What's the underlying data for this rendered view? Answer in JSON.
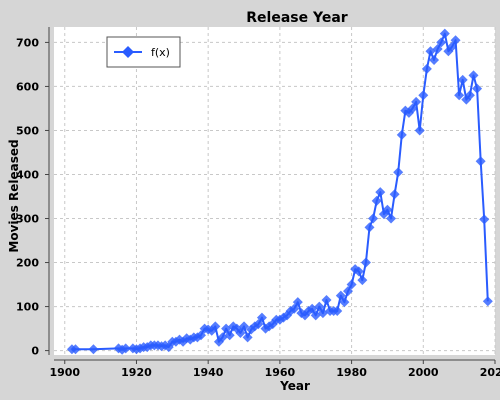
{
  "chart_data": {
    "type": "line",
    "title": "Release Year",
    "xlabel": "Year",
    "ylabel": "Movies Released",
    "xlim": [
      1897,
      2020
    ],
    "ylim": [
      -10,
      735
    ],
    "xticks": [
      1900,
      1920,
      1940,
      1960,
      1980,
      2000,
      2020
    ],
    "yticks": [
      0,
      100,
      200,
      300,
      400,
      500,
      600,
      700
    ],
    "grid": true,
    "legend_position": "top-left",
    "series": [
      {
        "name": "f(x)",
        "color": "#2a5cff",
        "marker": "diamond",
        "points": [
          [
            1902,
            3
          ],
          [
            1903,
            3
          ],
          [
            1908,
            3
          ],
          [
            1915,
            5
          ],
          [
            1916,
            2
          ],
          [
            1917,
            5
          ],
          [
            1919,
            5
          ],
          [
            1920,
            3
          ],
          [
            1921,
            5
          ],
          [
            1922,
            8
          ],
          [
            1923,
            8
          ],
          [
            1924,
            12
          ],
          [
            1925,
            12
          ],
          [
            1926,
            12
          ],
          [
            1927,
            10
          ],
          [
            1928,
            12
          ],
          [
            1929,
            8
          ],
          [
            1930,
            20
          ],
          [
            1931,
            20
          ],
          [
            1932,
            25
          ],
          [
            1933,
            20
          ],
          [
            1934,
            28
          ],
          [
            1935,
            25
          ],
          [
            1936,
            30
          ],
          [
            1937,
            30
          ],
          [
            1938,
            35
          ],
          [
            1939,
            50
          ],
          [
            1940,
            48
          ],
          [
            1941,
            45
          ],
          [
            1942,
            55
          ],
          [
            1943,
            20
          ],
          [
            1944,
            30
          ],
          [
            1945,
            50
          ],
          [
            1946,
            35
          ],
          [
            1947,
            55
          ],
          [
            1948,
            50
          ],
          [
            1949,
            40
          ],
          [
            1950,
            55
          ],
          [
            1951,
            30
          ],
          [
            1952,
            48
          ],
          [
            1953,
            55
          ],
          [
            1954,
            60
          ],
          [
            1955,
            75
          ],
          [
            1956,
            50
          ],
          [
            1957,
            55
          ],
          [
            1958,
            60
          ],
          [
            1959,
            70
          ],
          [
            1960,
            70
          ],
          [
            1961,
            75
          ],
          [
            1962,
            80
          ],
          [
            1963,
            90
          ],
          [
            1964,
            95
          ],
          [
            1965,
            110
          ],
          [
            1966,
            85
          ],
          [
            1967,
            80
          ],
          [
            1968,
            90
          ],
          [
            1969,
            95
          ],
          [
            1970,
            80
          ],
          [
            1971,
            100
          ],
          [
            1972,
            85
          ],
          [
            1973,
            115
          ],
          [
            1974,
            90
          ],
          [
            1975,
            90
          ],
          [
            1976,
            90
          ],
          [
            1977,
            125
          ],
          [
            1978,
            110
          ],
          [
            1979,
            135
          ],
          [
            1980,
            150
          ],
          [
            1981,
            185
          ],
          [
            1982,
            180
          ],
          [
            1983,
            160
          ],
          [
            1984,
            200
          ],
          [
            1985,
            280
          ],
          [
            1986,
            300
          ],
          [
            1987,
            340
          ],
          [
            1988,
            360
          ],
          [
            1989,
            310
          ],
          [
            1990,
            320
          ],
          [
            1991,
            300
          ],
          [
            1992,
            355
          ],
          [
            1993,
            405
          ],
          [
            1994,
            490
          ],
          [
            1995,
            545
          ],
          [
            1996,
            540
          ],
          [
            1997,
            550
          ],
          [
            1998,
            565
          ],
          [
            1999,
            500
          ],
          [
            2000,
            580
          ],
          [
            2001,
            640
          ],
          [
            2002,
            680
          ],
          [
            2003,
            660
          ],
          [
            2004,
            685
          ],
          [
            2005,
            700
          ],
          [
            2006,
            720
          ],
          [
            2007,
            680
          ],
          [
            2008,
            690
          ],
          [
            2009,
            705
          ],
          [
            2010,
            580
          ],
          [
            2011,
            615
          ],
          [
            2012,
            570
          ],
          [
            2013,
            580
          ],
          [
            2014,
            625
          ],
          [
            2015,
            595
          ],
          [
            2016,
            430
          ],
          [
            2017,
            298
          ],
          [
            2018,
            112
          ]
        ]
      }
    ]
  }
}
